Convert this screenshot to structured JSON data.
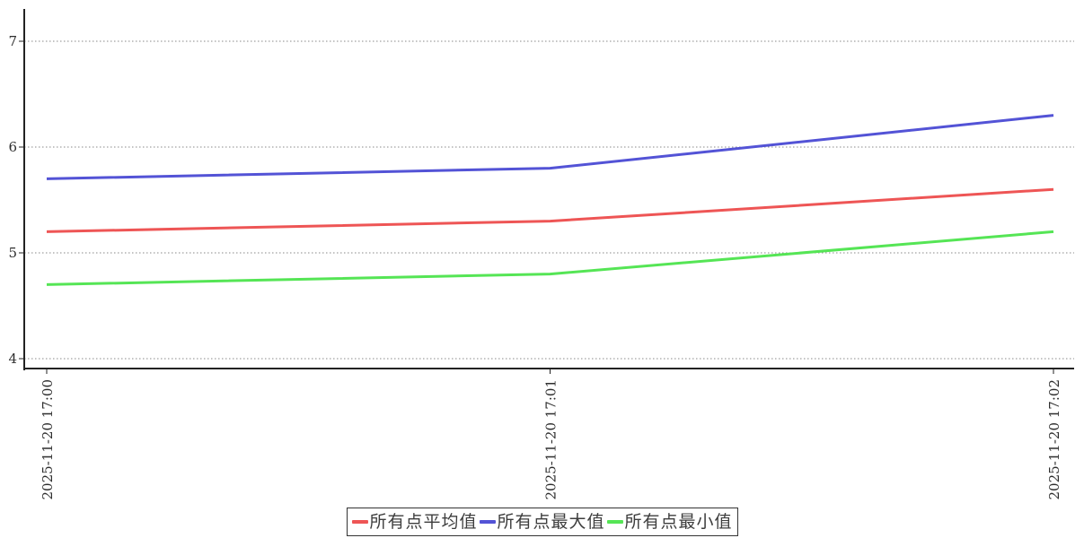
{
  "chart_data": {
    "type": "line",
    "title": "",
    "xlabel": "",
    "ylabel": "",
    "x_labels": [
      "2025-11-20 17:00",
      "2025-11-20 17:01",
      "2025-11-20 17:02"
    ],
    "y_ticks": [
      4,
      5,
      6,
      7
    ],
    "ylim": [
      3.9,
      7.3
    ],
    "grid": "horizontal-dotted",
    "legend_position": "bottom-center",
    "series": [
      {
        "name": "所有点平均值",
        "color": "#ee5555",
        "values": [
          5.2,
          5.3,
          5.6
        ]
      },
      {
        "name": "所有点最大值",
        "color": "#5353d6",
        "values": [
          5.7,
          5.8,
          6.3
        ]
      },
      {
        "name": "所有点最小值",
        "color": "#55e555",
        "values": [
          4.7,
          4.8,
          5.2
        ]
      }
    ],
    "colors": {
      "grid": "#888888",
      "axis": "#222222",
      "tick_text": "#2e2e2e",
      "background": "#ffffff"
    }
  }
}
